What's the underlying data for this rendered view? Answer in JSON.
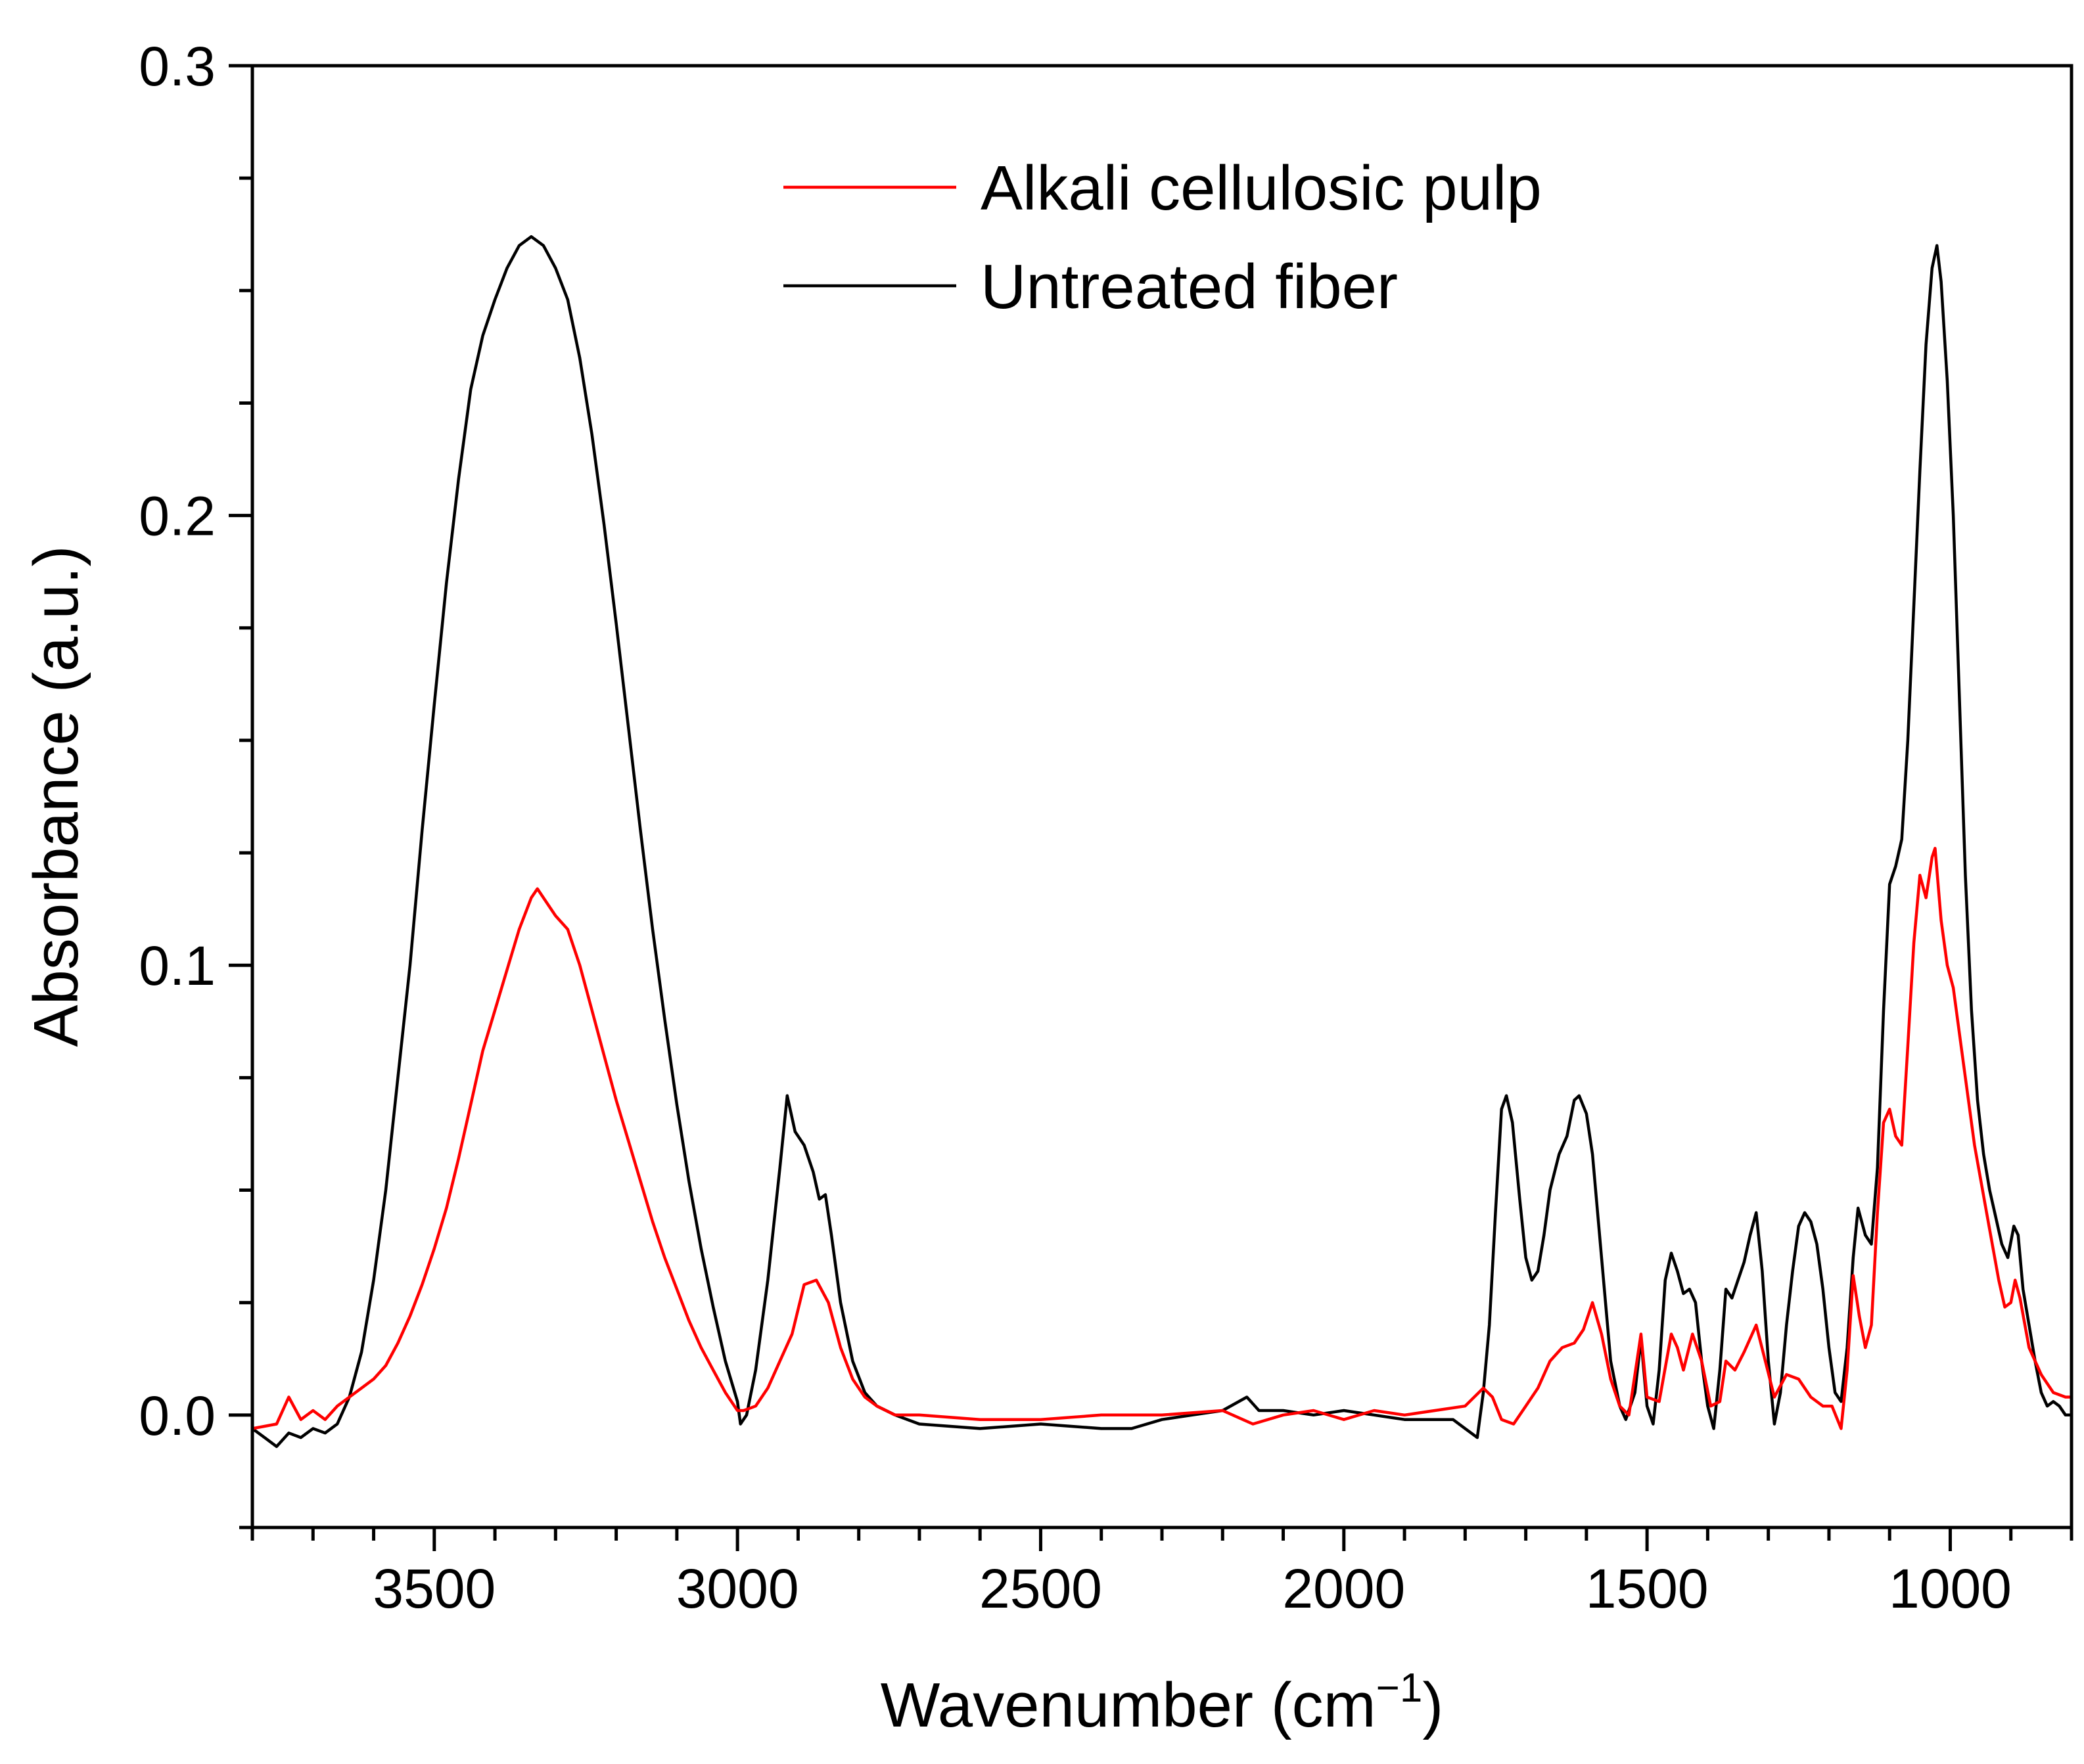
{
  "chart_data": {
    "type": "line",
    "title": "",
    "xlabel": "Wavenumber (cm",
    "xlabel_sup": "−1",
    "xlabel_close": ")",
    "ylabel": "Absorbance (a.u.)",
    "xlim": [
      3800,
      800
    ],
    "ylim": [
      -0.025,
      0.3
    ],
    "x_reversed": true,
    "x_ticks": [
      3500,
      3000,
      2500,
      2000,
      1500,
      1000
    ],
    "x_tick_labels": [
      "3500",
      "3000",
      "2500",
      "2000",
      "1500",
      "1000"
    ],
    "x_minor_step": 100,
    "y_ticks": [
      0.0,
      0.1,
      0.2,
      0.3
    ],
    "y_tick_labels": [
      "0.0",
      "0.1",
      "0.2",
      "0.3"
    ],
    "y_minor_step": 0.025,
    "grid": false,
    "legend_position": "top-center",
    "series": [
      {
        "name": "Alkali cellulosic pulp",
        "color": "#ff0000",
        "points": [
          [
            3800,
            -0.003
          ],
          [
            3760,
            -0.002
          ],
          [
            3740,
            0.004
          ],
          [
            3720,
            -0.001
          ],
          [
            3700,
            0.001
          ],
          [
            3680,
            -0.001
          ],
          [
            3660,
            0.002
          ],
          [
            3640,
            0.004
          ],
          [
            3620,
            0.006
          ],
          [
            3600,
            0.008
          ],
          [
            3580,
            0.011
          ],
          [
            3560,
            0.016
          ],
          [
            3540,
            0.022
          ],
          [
            3520,
            0.029
          ],
          [
            3500,
            0.037
          ],
          [
            3480,
            0.046
          ],
          [
            3460,
            0.057
          ],
          [
            3440,
            0.069
          ],
          [
            3420,
            0.081
          ],
          [
            3400,
            0.09
          ],
          [
            3380,
            0.099
          ],
          [
            3360,
            0.108
          ],
          [
            3340,
            0.115
          ],
          [
            3330,
            0.117
          ],
          [
            3320,
            0.115
          ],
          [
            3300,
            0.111
          ],
          [
            3280,
            0.108
          ],
          [
            3260,
            0.1
          ],
          [
            3240,
            0.09
          ],
          [
            3220,
            0.08
          ],
          [
            3200,
            0.07
          ],
          [
            3180,
            0.061
          ],
          [
            3160,
            0.052
          ],
          [
            3140,
            0.043
          ],
          [
            3120,
            0.035
          ],
          [
            3100,
            0.028
          ],
          [
            3080,
            0.021
          ],
          [
            3060,
            0.015
          ],
          [
            3040,
            0.01
          ],
          [
            3020,
            0.005
          ],
          [
            3000,
            0.001
          ],
          [
            2990,
            0.001
          ],
          [
            2970,
            0.002
          ],
          [
            2950,
            0.006
          ],
          [
            2930,
            0.012
          ],
          [
            2910,
            0.018
          ],
          [
            2890,
            0.029
          ],
          [
            2870,
            0.03
          ],
          [
            2850,
            0.025
          ],
          [
            2830,
            0.015
          ],
          [
            2810,
            0.008
          ],
          [
            2790,
            0.004
          ],
          [
            2770,
            0.002
          ],
          [
            2740,
            0.0
          ],
          [
            2700,
            0.0
          ],
          [
            2600,
            -0.001
          ],
          [
            2500,
            -0.001
          ],
          [
            2400,
            0.0
          ],
          [
            2300,
            0.0
          ],
          [
            2200,
            0.001
          ],
          [
            2150,
            -0.002
          ],
          [
            2100,
            0.0
          ],
          [
            2050,
            0.001
          ],
          [
            2000,
            -0.001
          ],
          [
            1950,
            0.001
          ],
          [
            1900,
            0.0
          ],
          [
            1850,
            0.001
          ],
          [
            1800,
            0.002
          ],
          [
            1770,
            0.006
          ],
          [
            1755,
            0.004
          ],
          [
            1740,
            -0.001
          ],
          [
            1720,
            -0.002
          ],
          [
            1700,
            0.002
          ],
          [
            1680,
            0.006
          ],
          [
            1660,
            0.012
          ],
          [
            1640,
            0.015
          ],
          [
            1620,
            0.016
          ],
          [
            1605,
            0.019
          ],
          [
            1590,
            0.025
          ],
          [
            1575,
            0.018
          ],
          [
            1560,
            0.008
          ],
          [
            1545,
            0.002
          ],
          [
            1530,
            0.0
          ],
          [
            1510,
            0.018
          ],
          [
            1500,
            0.004
          ],
          [
            1480,
            0.003
          ],
          [
            1460,
            0.018
          ],
          [
            1450,
            0.015
          ],
          [
            1440,
            0.01
          ],
          [
            1425,
            0.018
          ],
          [
            1410,
            0.012
          ],
          [
            1395,
            0.002
          ],
          [
            1380,
            0.003
          ],
          [
            1370,
            0.012
          ],
          [
            1355,
            0.01
          ],
          [
            1340,
            0.014
          ],
          [
            1320,
            0.02
          ],
          [
            1305,
            0.012
          ],
          [
            1290,
            0.004
          ],
          [
            1270,
            0.009
          ],
          [
            1250,
            0.008
          ],
          [
            1230,
            0.004
          ],
          [
            1210,
            0.002
          ],
          [
            1195,
            0.002
          ],
          [
            1180,
            -0.003
          ],
          [
            1170,
            0.01
          ],
          [
            1160,
            0.031
          ],
          [
            1150,
            0.022
          ],
          [
            1140,
            0.015
          ],
          [
            1130,
            0.02
          ],
          [
            1120,
            0.045
          ],
          [
            1110,
            0.065
          ],
          [
            1100,
            0.068
          ],
          [
            1090,
            0.062
          ],
          [
            1080,
            0.06
          ],
          [
            1070,
            0.082
          ],
          [
            1060,
            0.105
          ],
          [
            1050,
            0.12
          ],
          [
            1040,
            0.115
          ],
          [
            1030,
            0.124
          ],
          [
            1025,
            0.126
          ],
          [
            1015,
            0.11
          ],
          [
            1005,
            0.1
          ],
          [
            995,
            0.095
          ],
          [
            980,
            0.08
          ],
          [
            960,
            0.06
          ],
          [
            940,
            0.045
          ],
          [
            920,
            0.03
          ],
          [
            910,
            0.024
          ],
          [
            900,
            0.025
          ],
          [
            893,
            0.03
          ],
          [
            885,
            0.026
          ],
          [
            870,
            0.015
          ],
          [
            850,
            0.009
          ],
          [
            830,
            0.005
          ],
          [
            810,
            0.004
          ],
          [
            800,
            0.004
          ]
        ]
      },
      {
        "name": "Untreated fiber",
        "color": "#000000",
        "points": [
          [
            3800,
            -0.003
          ],
          [
            3780,
            -0.005
          ],
          [
            3760,
            -0.007
          ],
          [
            3740,
            -0.004
          ],
          [
            3720,
            -0.005
          ],
          [
            3700,
            -0.003
          ],
          [
            3680,
            -0.004
          ],
          [
            3660,
            -0.002
          ],
          [
            3640,
            0.004
          ],
          [
            3620,
            0.014
          ],
          [
            3600,
            0.03
          ],
          [
            3580,
            0.05
          ],
          [
            3560,
            0.075
          ],
          [
            3540,
            0.1
          ],
          [
            3520,
            0.13
          ],
          [
            3500,
            0.158
          ],
          [
            3480,
            0.185
          ],
          [
            3460,
            0.208
          ],
          [
            3440,
            0.228
          ],
          [
            3420,
            0.24
          ],
          [
            3400,
            0.248
          ],
          [
            3380,
            0.255
          ],
          [
            3360,
            0.26
          ],
          [
            3340,
            0.262
          ],
          [
            3320,
            0.26
          ],
          [
            3300,
            0.255
          ],
          [
            3280,
            0.248
          ],
          [
            3260,
            0.235
          ],
          [
            3240,
            0.218
          ],
          [
            3220,
            0.198
          ],
          [
            3200,
            0.176
          ],
          [
            3180,
            0.153
          ],
          [
            3160,
            0.13
          ],
          [
            3140,
            0.108
          ],
          [
            3120,
            0.088
          ],
          [
            3100,
            0.069
          ],
          [
            3080,
            0.052
          ],
          [
            3060,
            0.037
          ],
          [
            3040,
            0.024
          ],
          [
            3020,
            0.012
          ],
          [
            3000,
            0.003
          ],
          [
            2995,
            -0.002
          ],
          [
            2985,
            0.0
          ],
          [
            2970,
            0.01
          ],
          [
            2950,
            0.03
          ],
          [
            2930,
            0.055
          ],
          [
            2918,
            0.071
          ],
          [
            2905,
            0.063
          ],
          [
            2890,
            0.06
          ],
          [
            2875,
            0.054
          ],
          [
            2865,
            0.048
          ],
          [
            2855,
            0.049
          ],
          [
            2845,
            0.04
          ],
          [
            2830,
            0.025
          ],
          [
            2810,
            0.012
          ],
          [
            2790,
            0.005
          ],
          [
            2770,
            0.002
          ],
          [
            2740,
            0.0
          ],
          [
            2700,
            -0.002
          ],
          [
            2600,
            -0.003
          ],
          [
            2500,
            -0.002
          ],
          [
            2400,
            -0.003
          ],
          [
            2350,
            -0.003
          ],
          [
            2300,
            -0.001
          ],
          [
            2250,
            0.0
          ],
          [
            2200,
            0.001
          ],
          [
            2160,
            0.004
          ],
          [
            2140,
            0.001
          ],
          [
            2100,
            0.001
          ],
          [
            2050,
            0.0
          ],
          [
            2000,
            0.001
          ],
          [
            1950,
            0.0
          ],
          [
            1900,
            -0.001
          ],
          [
            1850,
            -0.001
          ],
          [
            1820,
            -0.001
          ],
          [
            1800,
            -0.003
          ],
          [
            1780,
            -0.005
          ],
          [
            1770,
            0.005
          ],
          [
            1760,
            0.02
          ],
          [
            1750,
            0.045
          ],
          [
            1740,
            0.068
          ],
          [
            1732,
            0.071
          ],
          [
            1722,
            0.065
          ],
          [
            1710,
            0.048
          ],
          [
            1700,
            0.035
          ],
          [
            1690,
            0.03
          ],
          [
            1680,
            0.032
          ],
          [
            1670,
            0.04
          ],
          [
            1660,
            0.05
          ],
          [
            1645,
            0.058
          ],
          [
            1632,
            0.062
          ],
          [
            1620,
            0.07
          ],
          [
            1612,
            0.071
          ],
          [
            1600,
            0.067
          ],
          [
            1590,
            0.058
          ],
          [
            1575,
            0.035
          ],
          [
            1560,
            0.012
          ],
          [
            1545,
            0.002
          ],
          [
            1535,
            -0.001
          ],
          [
            1520,
            0.005
          ],
          [
            1510,
            0.017
          ],
          [
            1500,
            0.002
          ],
          [
            1490,
            -0.002
          ],
          [
            1480,
            0.01
          ],
          [
            1470,
            0.03
          ],
          [
            1460,
            0.036
          ],
          [
            1450,
            0.032
          ],
          [
            1440,
            0.027
          ],
          [
            1430,
            0.028
          ],
          [
            1420,
            0.025
          ],
          [
            1410,
            0.012
          ],
          [
            1400,
            0.002
          ],
          [
            1390,
            -0.003
          ],
          [
            1380,
            0.01
          ],
          [
            1370,
            0.028
          ],
          [
            1360,
            0.026
          ],
          [
            1350,
            0.03
          ],
          [
            1340,
            0.034
          ],
          [
            1330,
            0.04
          ],
          [
            1320,
            0.045
          ],
          [
            1310,
            0.032
          ],
          [
            1300,
            0.012
          ],
          [
            1290,
            -0.002
          ],
          [
            1280,
            0.005
          ],
          [
            1270,
            0.02
          ],
          [
            1260,
            0.032
          ],
          [
            1250,
            0.042
          ],
          [
            1240,
            0.045
          ],
          [
            1230,
            0.043
          ],
          [
            1220,
            0.038
          ],
          [
            1210,
            0.028
          ],
          [
            1200,
            0.015
          ],
          [
            1190,
            0.005
          ],
          [
            1180,
            0.003
          ],
          [
            1170,
            0.015
          ],
          [
            1160,
            0.035
          ],
          [
            1152,
            0.046
          ],
          [
            1140,
            0.04
          ],
          [
            1130,
            0.038
          ],
          [
            1120,
            0.055
          ],
          [
            1110,
            0.09
          ],
          [
            1100,
            0.118
          ],
          [
            1090,
            0.122
          ],
          [
            1080,
            0.128
          ],
          [
            1070,
            0.15
          ],
          [
            1060,
            0.18
          ],
          [
            1050,
            0.21
          ],
          [
            1040,
            0.238
          ],
          [
            1030,
            0.255
          ],
          [
            1022,
            0.26
          ],
          [
            1015,
            0.252
          ],
          [
            1005,
            0.23
          ],
          [
            995,
            0.2
          ],
          [
            985,
            0.16
          ],
          [
            975,
            0.12
          ],
          [
            965,
            0.09
          ],
          [
            955,
            0.07
          ],
          [
            945,
            0.058
          ],
          [
            935,
            0.05
          ],
          [
            925,
            0.044
          ],
          [
            915,
            0.038
          ],
          [
            905,
            0.035
          ],
          [
            895,
            0.042
          ],
          [
            888,
            0.04
          ],
          [
            880,
            0.028
          ],
          [
            870,
            0.02
          ],
          [
            860,
            0.012
          ],
          [
            850,
            0.005
          ],
          [
            840,
            0.002
          ],
          [
            830,
            0.003
          ],
          [
            820,
            0.002
          ],
          [
            810,
            0.0
          ],
          [
            800,
            0.0
          ]
        ]
      }
    ]
  }
}
